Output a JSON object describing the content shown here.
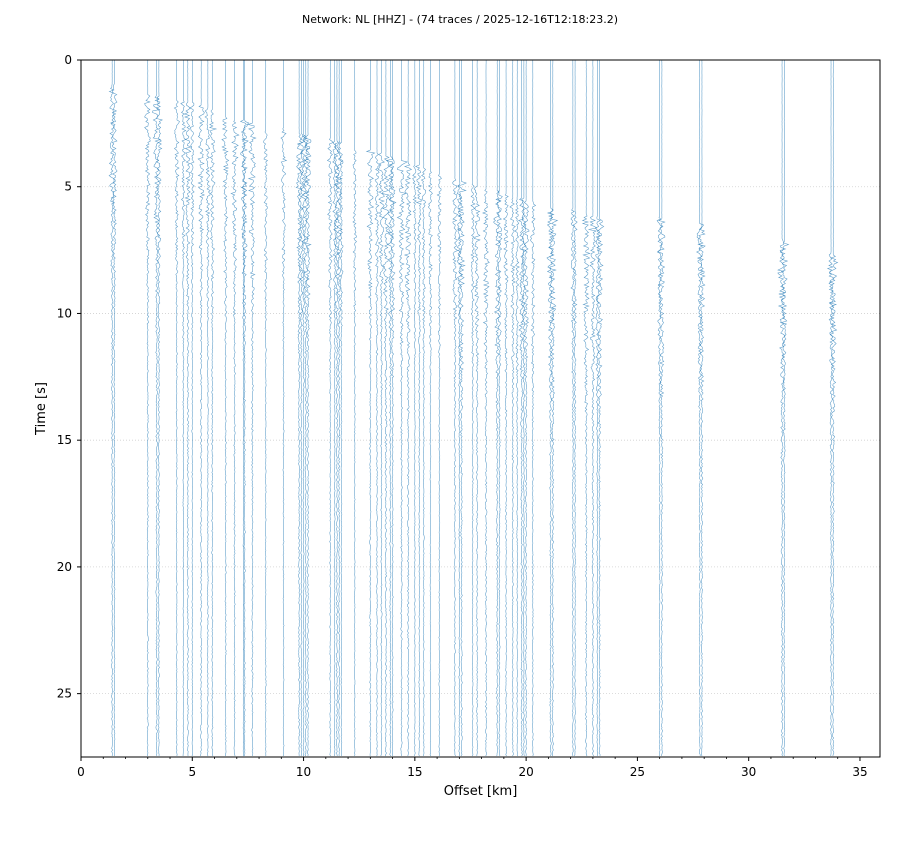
{
  "chart_data": {
    "type": "line",
    "title": "Network: NL [HHZ] - (74 traces / 2025-12-16T12:18:23.2)",
    "xlabel": "Offset [km]",
    "ylabel": "Time [s]",
    "xlim": [
      0,
      35.9
    ],
    "ylim": [
      27.5,
      0
    ],
    "x_ticks": [
      0,
      5,
      10,
      15,
      20,
      25,
      30,
      35
    ],
    "y_ticks": [
      0,
      5,
      10,
      15,
      20,
      25
    ],
    "y_inverted": true,
    "grid": "horizontal-dotted",
    "trace_color": "#1f77b4",
    "trace_count": 74,
    "trace_offsets_km": [
      1.4,
      1.5,
      3.0,
      3.4,
      3.5,
      4.3,
      4.6,
      4.8,
      5.0,
      5.4,
      5.7,
      5.9,
      6.5,
      6.9,
      7.3,
      7.35,
      7.7,
      8.3,
      9.1,
      9.8,
      9.9,
      10.0,
      10.1,
      10.2,
      11.2,
      11.4,
      11.5,
      11.6,
      11.7,
      12.3,
      13.0,
      13.3,
      13.5,
      13.7,
      13.9,
      14.0,
      14.4,
      14.7,
      15.0,
      15.2,
      15.4,
      15.7,
      16.1,
      16.8,
      17.0,
      17.1,
      17.6,
      17.8,
      18.2,
      18.7,
      18.8,
      19.1,
      19.4,
      19.6,
      19.8,
      19.9,
      20.0,
      20.3,
      21.1,
      21.2,
      22.1,
      22.2,
      22.7,
      23.0,
      23.2,
      23.3,
      26.0,
      26.1,
      27.8,
      27.9,
      31.5,
      31.6,
      33.7,
      33.8
    ],
    "first_arrival_s": [
      1.0,
      1.0,
      1.4,
      1.4,
      1.4,
      1.6,
      1.6,
      1.7,
      1.7,
      1.8,
      1.9,
      2.0,
      2.3,
      2.4,
      2.4,
      2.4,
      2.5,
      2.8,
      2.7,
      2.9,
      2.9,
      3.0,
      3.0,
      3.0,
      3.1,
      3.2,
      3.2,
      3.2,
      3.3,
      3.5,
      3.6,
      3.7,
      3.7,
      3.8,
      3.8,
      3.9,
      4.0,
      4.1,
      4.2,
      4.2,
      4.3,
      4.4,
      4.5,
      4.7,
      4.8,
      4.8,
      4.9,
      5.0,
      5.1,
      5.2,
      5.2,
      5.3,
      5.4,
      5.4,
      5.5,
      5.5,
      5.6,
      5.6,
      5.8,
      5.9,
      5.9,
      6.0,
      6.1,
      6.2,
      6.2,
      6.3,
      6.2,
      6.3,
      6.5,
      6.6,
      7.1,
      7.2,
      7.6,
      7.7
    ]
  }
}
